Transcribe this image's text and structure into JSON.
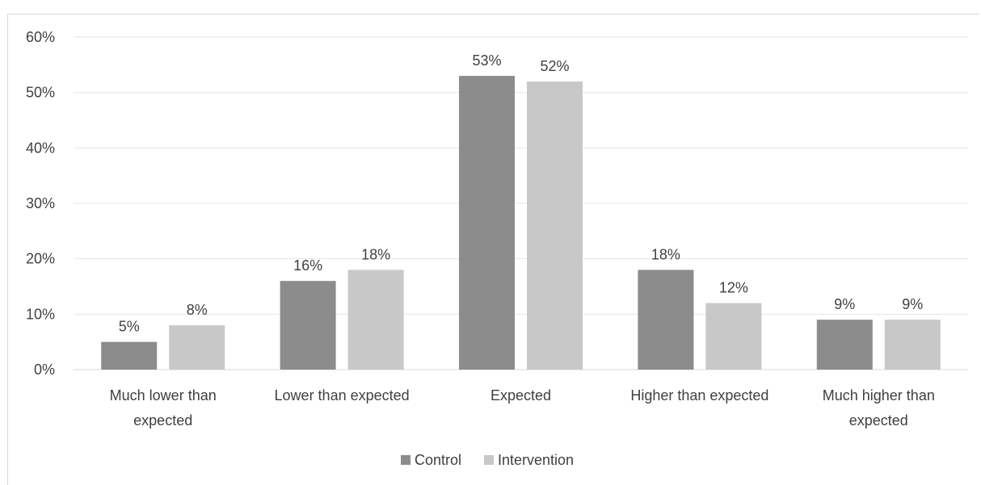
{
  "chart_data": {
    "type": "bar",
    "categories": [
      [
        "Much lower than",
        "expected"
      ],
      [
        "Lower than expected"
      ],
      [
        "Expected"
      ],
      [
        "Higher than expected"
      ],
      [
        "Much higher than",
        "expected"
      ]
    ],
    "series": [
      {
        "name": "Control",
        "values": [
          5,
          16,
          53,
          18,
          9
        ],
        "labels": [
          "5%",
          "16%",
          "53%",
          "18%",
          "9%"
        ],
        "color": "#8c8c8c"
      },
      {
        "name": "Intervention",
        "values": [
          8,
          18,
          52,
          12,
          9
        ],
        "labels": [
          "8%",
          "18%",
          "52%",
          "12%",
          "9%"
        ],
        "color": "#c8c8c8"
      }
    ],
    "yticks": [
      "0%",
      "10%",
      "20%",
      "30%",
      "40%",
      "50%",
      "60%"
    ],
    "ylim": [
      0,
      60
    ],
    "grid": true,
    "legend_position": "bottom"
  }
}
